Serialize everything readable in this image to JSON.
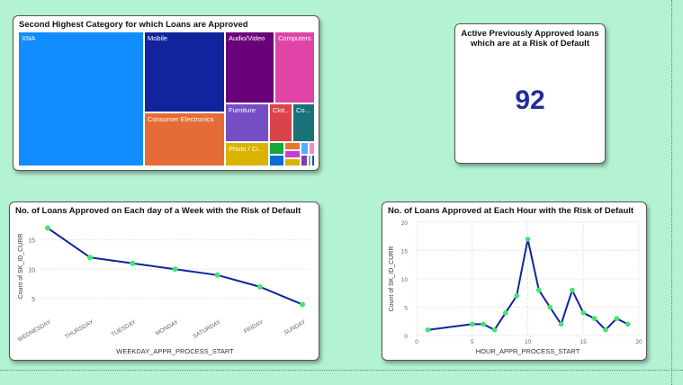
{
  "treemap": {
    "title": "Second Highest Category for which Loans are Approved",
    "tiles": [
      {
        "label": "XNA",
        "color": "#118dff"
      },
      {
        "label": "Mobile",
        "color": "#12239e"
      },
      {
        "label": "Consumer Electronics",
        "color": "#e66c37"
      },
      {
        "label": "Audio/Video",
        "color": "#6b007b"
      },
      {
        "label": "Computers",
        "color": "#e044a7"
      },
      {
        "label": "Furniture",
        "color": "#744ec2"
      },
      {
        "label": "Clot...",
        "color": "#d9444b"
      },
      {
        "label": "Co...",
        "color": "#197278"
      },
      {
        "label": "Photo / Ci...",
        "color": "#d9b300"
      }
    ],
    "small_tile_colors": [
      "#15a83b",
      "#0b6dd4",
      "#e8762c",
      "#c83dd0",
      "#d9b300",
      "#4fb0ff",
      "#ef8bc7",
      "#7a3fb8",
      "#5fcf68",
      "#2c45c8"
    ]
  },
  "kpi": {
    "title": "Active Previously Approved loans which are at a Risk of Default",
    "value": "92"
  },
  "chart_data": [
    {
      "type": "line",
      "title": "No. of Loans Approved on Each day of a Week with the Risk of Default",
      "xlabel": "WEEKDAY_APPR_PROCESS_START",
      "ylabel": "Count of SK_ID_CURR",
      "categories": [
        "WEDNESDAY",
        "THURSDAY",
        "TUESDAY",
        "MONDAY",
        "SATURDAY",
        "FRIDAY",
        "SUNDAY"
      ],
      "values": [
        17,
        12,
        11,
        10,
        9,
        7,
        4
      ],
      "yticks": [
        5,
        10,
        15
      ],
      "ylim": [
        3,
        18
      ],
      "line_color": "#12239e",
      "marker_color": "#3ee86c",
      "grid": true
    },
    {
      "type": "line",
      "title": "No. of Loans Approved at Each Hour with the Risk of Default",
      "xlabel": "HOUR_APPR_PROCESS_START",
      "ylabel": "Count of SK_ID_CURR",
      "x": [
        1,
        5,
        6,
        7,
        8,
        9,
        10,
        11,
        12,
        13,
        14,
        15,
        16,
        17,
        18,
        19
      ],
      "values": [
        1,
        2,
        2,
        1,
        4,
        7,
        17,
        8,
        5,
        2,
        8,
        4,
        3,
        1,
        3,
        2
      ],
      "xticks": [
        0,
        5,
        10,
        15,
        20
      ],
      "yticks": [
        0,
        5,
        10,
        15,
        20
      ],
      "xlim": [
        0,
        20
      ],
      "ylim": [
        0,
        20
      ],
      "line_color": "#12239e",
      "marker_color": "#3ee86c",
      "grid": true
    }
  ]
}
